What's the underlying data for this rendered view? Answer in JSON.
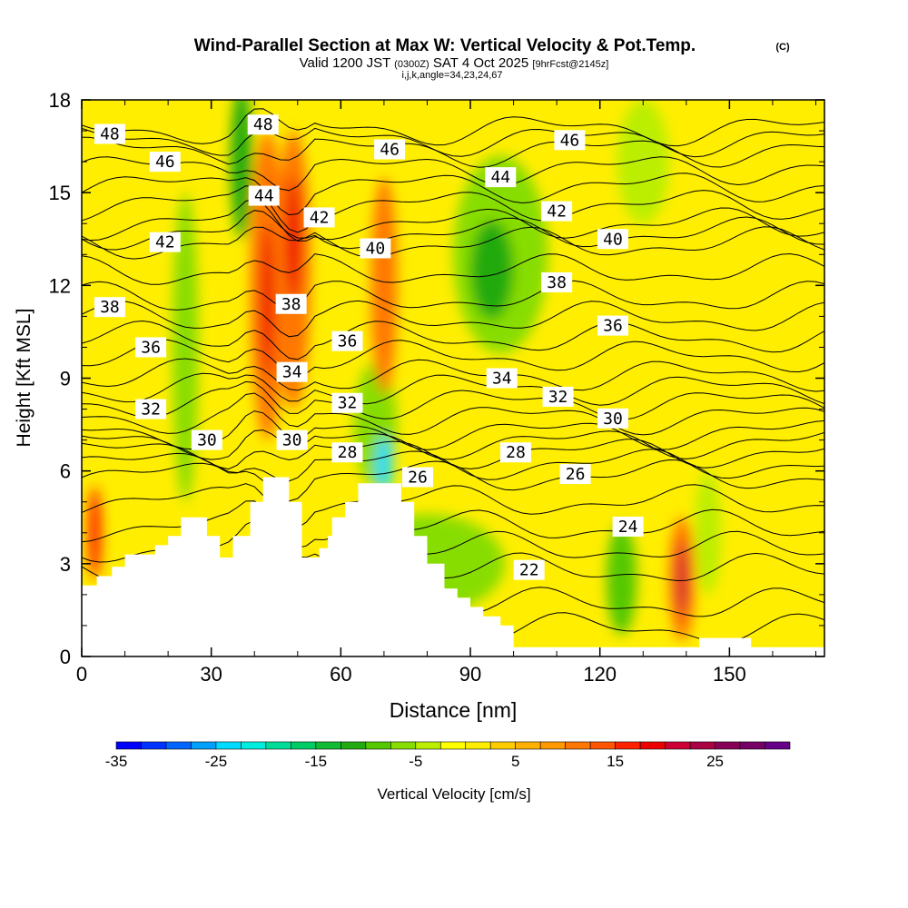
{
  "chart_data": {
    "type": "heatmap",
    "title": "Wind-Parallel Section at Max W: Vertical Velocity & Pot.Temp.",
    "title_mark": "(C)",
    "subtitle_main": "Valid 1200 JST",
    "subtitle_utc": "(0300Z)",
    "subtitle_date": "SAT 4 Oct 2025",
    "subtitle_fcst": "[9hrFcst@2145z]",
    "subtitle2": "i,j,k,angle=34,23,24,67",
    "xlabel": "Distance [nm]",
    "ylabel": "Height [Kft MSL]",
    "xlim": [
      0,
      172
    ],
    "ylim": [
      0,
      18
    ],
    "xticks": [
      "0",
      "30",
      "60",
      "90",
      "120",
      "150"
    ],
    "yticks": [
      "0",
      "3",
      "6",
      "9",
      "12",
      "15",
      "18"
    ],
    "colorbar": {
      "label": "Vertical Velocity [cm/s]",
      "min": -35,
      "step": 2.5,
      "tick_labels": [
        "-35",
        "-25",
        "-15",
        "-5",
        "5",
        "15",
        "25"
      ],
      "colors": [
        "#0000ff",
        "#0033ff",
        "#0066ff",
        "#00a0ff",
        "#00dcff",
        "#00eedd",
        "#00dd99",
        "#00cc66",
        "#11bb33",
        "#22aa11",
        "#55c800",
        "#88dd00",
        "#bbee00",
        "#ffff00",
        "#ffee00",
        "#ffcc00",
        "#ffb000",
        "#ff9900",
        "#ff7700",
        "#ff5500",
        "#ff2200",
        "#ee0000",
        "#cc0033",
        "#aa0044",
        "#880055",
        "#770066",
        "#660088"
      ]
    },
    "theta_contours": [
      {
        "value": 22,
        "label": "22",
        "x": 103.6,
        "h": 2.8
      },
      {
        "value": 24,
        "label": "24",
        "x": 126.5,
        "h": 4.2
      },
      {
        "value": 26,
        "label": "26",
        "x": 77.8,
        "h": 5.8
      },
      {
        "value": 26,
        "label": "26",
        "x": 114.3,
        "h": 5.9
      },
      {
        "value": 28,
        "label": "28",
        "x": 61.5,
        "h": 6.6
      },
      {
        "value": 28,
        "label": "28",
        "x": 100.5,
        "h": 6.6
      },
      {
        "value": 30,
        "label": "30",
        "x": 29,
        "h": 7.0
      },
      {
        "value": 30,
        "label": "30",
        "x": 48.7,
        "h": 7.0
      },
      {
        "value": 30,
        "label": "30",
        "x": 123,
        "h": 7.7
      },
      {
        "value": 32,
        "label": "32",
        "x": 16,
        "h": 8.0
      },
      {
        "value": 32,
        "label": "32",
        "x": 61.5,
        "h": 8.2
      },
      {
        "value": 32,
        "label": "32",
        "x": 110.3,
        "h": 8.4
      },
      {
        "value": 34,
        "label": "34",
        "x": 48.7,
        "h": 9.2
      },
      {
        "value": 34,
        "label": "34",
        "x": 97.3,
        "h": 9.0
      },
      {
        "value": 36,
        "label": "36",
        "x": 16,
        "h": 10.0
      },
      {
        "value": 36,
        "label": "36",
        "x": 61.5,
        "h": 10.2
      },
      {
        "value": 36,
        "label": "36",
        "x": 123,
        "h": 10.7
      },
      {
        "value": 38,
        "label": "38",
        "x": 6.5,
        "h": 11.3
      },
      {
        "value": 38,
        "label": "38",
        "x": 48.5,
        "h": 11.4
      },
      {
        "value": 38,
        "label": "38",
        "x": 110,
        "h": 12.1
      },
      {
        "value": 40,
        "label": "40",
        "x": 68,
        "h": 13.2
      },
      {
        "value": 40,
        "label": "40",
        "x": 123,
        "h": 13.5
      },
      {
        "value": 42,
        "label": "42",
        "x": 19.3,
        "h": 13.4
      },
      {
        "value": 42,
        "label": "42",
        "x": 55,
        "h": 14.2
      },
      {
        "value": 42,
        "label": "42",
        "x": 110,
        "h": 14.4
      },
      {
        "value": 44,
        "label": "44",
        "x": 42.2,
        "h": 14.9
      },
      {
        "value": 44,
        "label": "44",
        "x": 97,
        "h": 15.5
      },
      {
        "value": 46,
        "label": "46",
        "x": 19.3,
        "h": 16.0
      },
      {
        "value": 46,
        "label": "46",
        "x": 71.3,
        "h": 16.4
      },
      {
        "value": 46,
        "label": "46",
        "x": 113,
        "h": 16.7
      },
      {
        "value": 48,
        "label": "48",
        "x": 6.5,
        "h": 16.9
      },
      {
        "value": 48,
        "label": "48",
        "x": 42,
        "h": 17.2
      }
    ],
    "velocity_features": [
      {
        "x": 80,
        "h": 3,
        "rx": 18,
        "ry": 1.6,
        "w": -7.5
      },
      {
        "x": 24,
        "h": 10,
        "rx": 3,
        "ry": 5,
        "w": -7.5
      },
      {
        "x": 37,
        "h": 16,
        "rx": 2.5,
        "ry": 2.5,
        "w": -12.5
      },
      {
        "x": 97,
        "h": 13,
        "rx": 11,
        "ry": 3.2,
        "w": -7.5
      },
      {
        "x": 95,
        "h": 12.5,
        "rx": 5,
        "ry": 1.6,
        "w": -12.5
      },
      {
        "x": 68,
        "h": 7.5,
        "rx": 5,
        "ry": 2,
        "w": -7.5
      },
      {
        "x": 70,
        "h": 6.2,
        "rx": 1.8,
        "ry": 0.9,
        "w": -25
      },
      {
        "x": 43,
        "h": 12,
        "rx": 4,
        "ry": 5,
        "w": 10
      },
      {
        "x": 49,
        "h": 12.5,
        "rx": 4,
        "ry": 4.5,
        "w": 10
      },
      {
        "x": 43,
        "h": 11.5,
        "rx": 1.5,
        "ry": 2.5,
        "w": 17.5
      },
      {
        "x": 49,
        "h": 13.5,
        "rx": 1.8,
        "ry": 2,
        "w": 17.5
      },
      {
        "x": 70,
        "h": 12,
        "rx": 3,
        "ry": 3.5,
        "w": 10
      },
      {
        "x": 3,
        "h": 4,
        "rx": 1.5,
        "ry": 1.5,
        "w": 15
      },
      {
        "x": 125,
        "h": 2.5,
        "rx": 3.5,
        "ry": 1.8,
        "w": -10
      },
      {
        "x": 139,
        "h": 2.5,
        "rx": 3,
        "ry": 2,
        "w": 10
      },
      {
        "x": 139,
        "h": 2.5,
        "rx": 1.2,
        "ry": 1.2,
        "w": 20
      },
      {
        "x": 130,
        "h": 16,
        "rx": 6,
        "ry": 2,
        "w": -5
      },
      {
        "x": 145,
        "h": 4,
        "rx": 3,
        "ry": 2,
        "w": -5
      }
    ],
    "terrain": [
      [
        0,
        2.3
      ],
      [
        3.5,
        2.3
      ],
      [
        3.5,
        2.6
      ],
      [
        7,
        2.6
      ],
      [
        7,
        2.9
      ],
      [
        10,
        2.9
      ],
      [
        10,
        3.3
      ],
      [
        17,
        3.3
      ],
      [
        17,
        3.6
      ],
      [
        20,
        3.6
      ],
      [
        20,
        3.9
      ],
      [
        23,
        3.9
      ],
      [
        23,
        4.5
      ],
      [
        29,
        4.5
      ],
      [
        29,
        3.9
      ],
      [
        32,
        3.9
      ],
      [
        32,
        3.2
      ],
      [
        35,
        3.2
      ],
      [
        35,
        3.9
      ],
      [
        39,
        3.9
      ],
      [
        39,
        5.0
      ],
      [
        42,
        5.0
      ],
      [
        42,
        5.8
      ],
      [
        48,
        5.8
      ],
      [
        48,
        5.0
      ],
      [
        51,
        5.0
      ],
      [
        51,
        3.2
      ],
      [
        55,
        3.2
      ],
      [
        55,
        3.5
      ],
      [
        57,
        3.5
      ],
      [
        57,
        3.9
      ],
      [
        58,
        3.9
      ],
      [
        58,
        4.5
      ],
      [
        61,
        4.5
      ],
      [
        61,
        5.0
      ],
      [
        64,
        5.0
      ],
      [
        64,
        5.6
      ],
      [
        74,
        5.6
      ],
      [
        74,
        5.0
      ],
      [
        77,
        5.0
      ],
      [
        77,
        3.9
      ],
      [
        80,
        3.9
      ],
      [
        80,
        3.0
      ],
      [
        84,
        3.0
      ],
      [
        84,
        2.2
      ],
      [
        87,
        2.2
      ],
      [
        87,
        1.9
      ],
      [
        90,
        1.9
      ],
      [
        90,
        1.6
      ],
      [
        93,
        1.6
      ],
      [
        93,
        1.3
      ],
      [
        97,
        1.3
      ],
      [
        97,
        1.0
      ],
      [
        100,
        1.0
      ],
      [
        100,
        0.3
      ],
      [
        143,
        0.3
      ],
      [
        143,
        0.6
      ],
      [
        155,
        0.6
      ],
      [
        155,
        0.3
      ],
      [
        172,
        0.3
      ],
      [
        172,
        0
      ],
      [
        0,
        0
      ]
    ]
  }
}
